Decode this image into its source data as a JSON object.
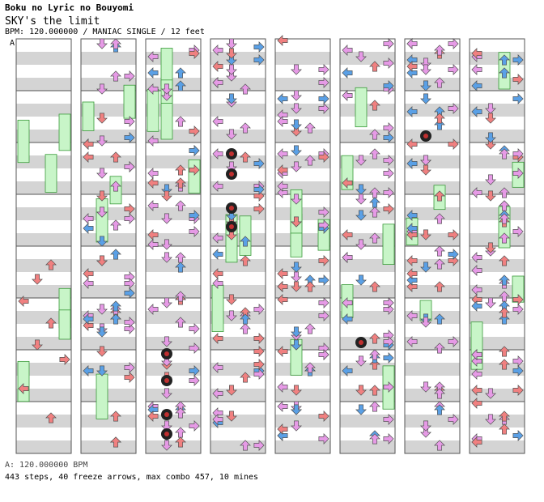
{
  "song": {
    "title": "Boku no Lyric no Bouyomi",
    "subtitle": "SKY's the limit",
    "chart_info": "BPM: 120.000000 / MANIAC SINGLE / 12 feet",
    "section_marker": "A",
    "bpm_line": "A: 120.000000 BPM",
    "stats": "443 steps, 40 freeze arrows, max combo 457, 10 mines"
  },
  "colors": {
    "left_arrow": "#f08080",
    "down_arrow": "#a0c8f0",
    "up_arrow": "#f0a0f0",
    "right_arrow": "#a0c8f0",
    "quarter": "#f08080",
    "eighth": "#5aa0e6",
    "sixteenth": "#e69ae6",
    "freeze": "#c8f5c8",
    "stripe": "#d4d4d4",
    "mine": "#222222"
  },
  "icons": [
    "arrow-left-icon",
    "arrow-down-icon",
    "arrow-up-icon",
    "arrow-right-icon",
    "freeze-arrow-icon",
    "mine-icon"
  ],
  "chart": {
    "columns": 8,
    "measures_per_column": 8,
    "lanes": [
      "left",
      "down",
      "up",
      "right"
    ]
  }
}
